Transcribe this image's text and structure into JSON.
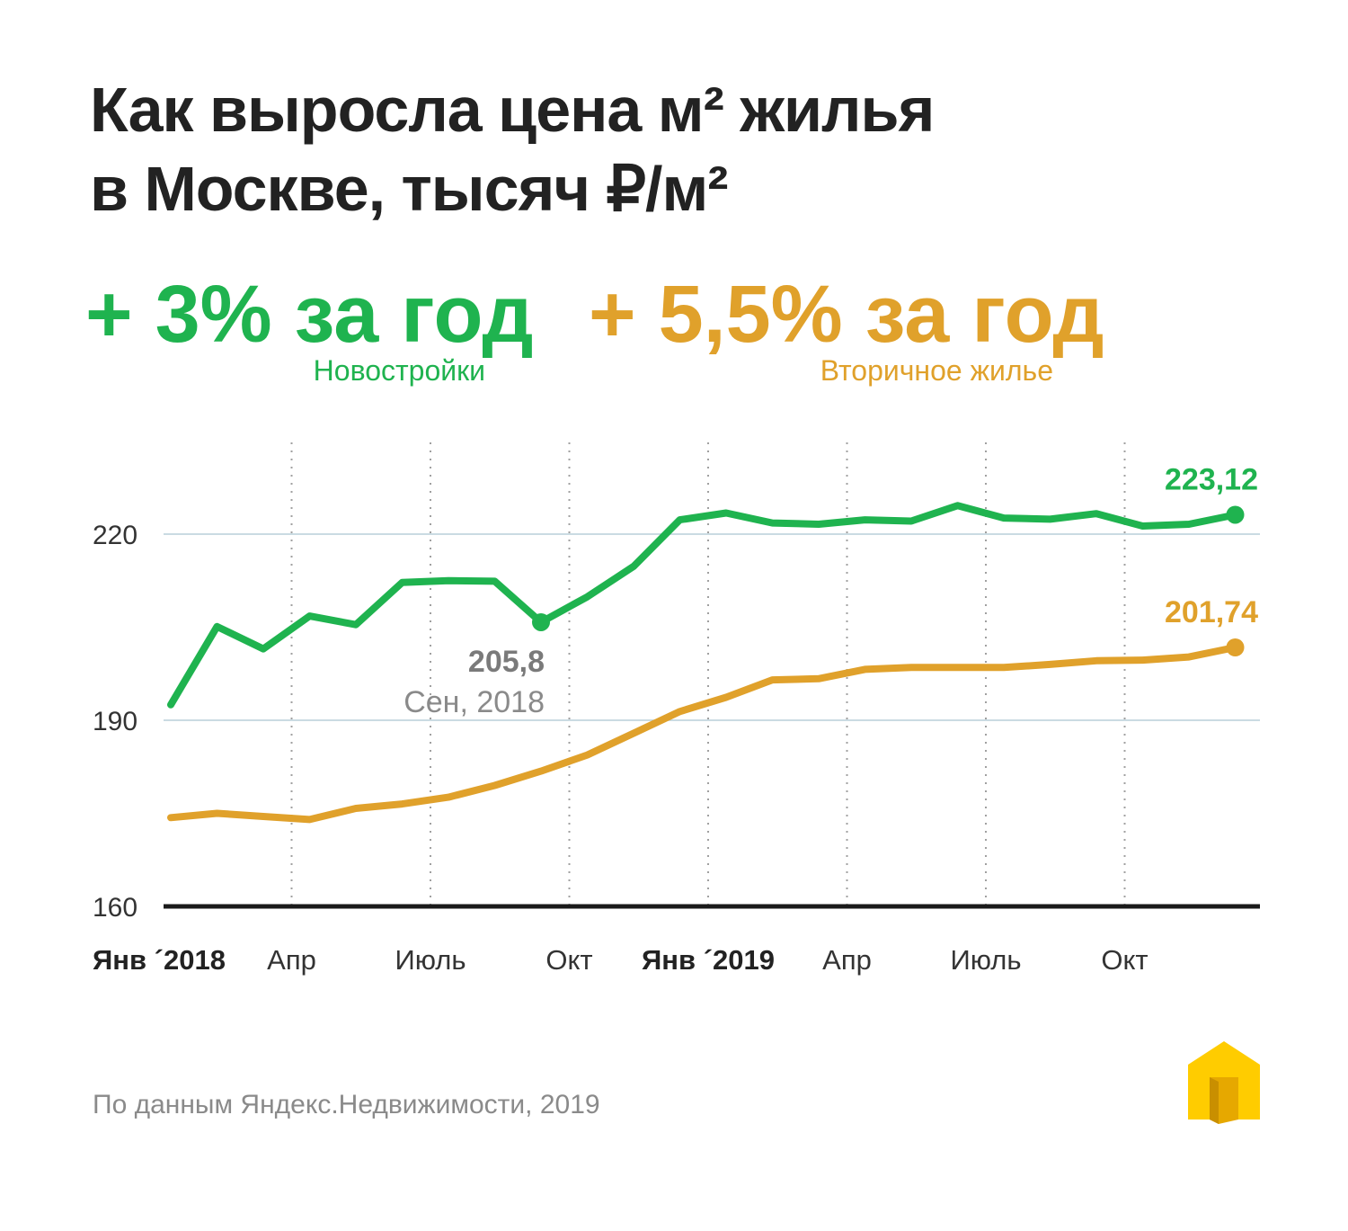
{
  "title_line1": "Как выросла цена м² жилья",
  "title_line2": "в Москве, тысяч ₽/м²",
  "stats": {
    "new": {
      "value": "+ 3% за год",
      "label": "Новостройки",
      "color": "#1fb34f"
    },
    "secondary": {
      "value": "+ 5,5% за год",
      "label": "Вторичное жилье",
      "color": "#e0a12b"
    }
  },
  "source": "По данным Яндекс.Недвижимости, 2019",
  "logo_icon": "house-icon",
  "chart_data": {
    "type": "line",
    "x": [
      "Янв 2018",
      "Фев 2018",
      "Мар 2018",
      "Апр 2018",
      "Май 2018",
      "Июнь 2018",
      "Июль 2018",
      "Авг 2018",
      "Сен 2018",
      "Окт 2018",
      "Ноя 2018",
      "Дек 2018",
      "Янв 2019",
      "Фев 2019",
      "Мар 2019",
      "Апр 2019",
      "Май 2019",
      "Июнь 2019",
      "Июль 2019",
      "Авг 2019",
      "Сен 2019",
      "Окт 2019",
      "Ноя 2019",
      "Дек 2019"
    ],
    "series": [
      {
        "name": "Новостройки",
        "color": "#1fb34f",
        "values": [
          192.5,
          205.1,
          201.5,
          206.8,
          205.4,
          212.2,
          212.5,
          212.4,
          205.8,
          209.9,
          214.8,
          222.3,
          223.4,
          221.8,
          221.6,
          222.3,
          222.1,
          224.6,
          222.6,
          222.4,
          223.3,
          221.3,
          221.6,
          223.12
        ]
      },
      {
        "name": "Вторичное жилье",
        "color": "#e0a12b",
        "values": [
          174.3,
          175.0,
          174.5,
          174.0,
          175.8,
          176.5,
          177.6,
          179.5,
          181.8,
          184.4,
          187.9,
          191.4,
          193.7,
          196.5,
          196.7,
          198.2,
          198.5,
          198.5,
          198.5,
          199.0,
          199.6,
          199.7,
          200.2,
          201.74
        ]
      }
    ],
    "y_ticks": [
      "160",
      "190",
      "220"
    ],
    "ylim": [
      160,
      230
    ],
    "x_tick_labels": [
      {
        "label": "Янв ´2018",
        "bold": true,
        "index": 0
      },
      {
        "label": "Апр",
        "bold": false,
        "index": 3
      },
      {
        "label": "Июль",
        "bold": false,
        "index": 6
      },
      {
        "label": "Окт",
        "bold": false,
        "index": 9
      },
      {
        "label": "Янв ´2019",
        "bold": true,
        "index": 12
      },
      {
        "label": "Апр",
        "bold": false,
        "index": 15
      },
      {
        "label": "Июль",
        "bold": false,
        "index": 18
      },
      {
        "label": "Окт",
        "bold": false,
        "index": 21
      }
    ],
    "annotations": {
      "green_end": "223,12",
      "gold_end": "201,74",
      "dip_value": "205,8",
      "dip_date": "Сен, 2018"
    },
    "grid": true
  }
}
